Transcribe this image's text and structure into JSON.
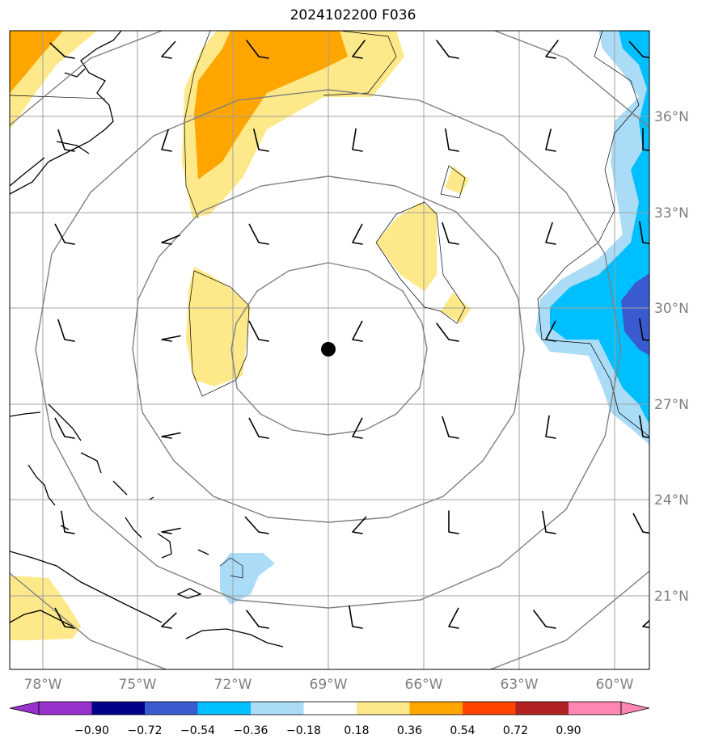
{
  "title": "2024102200 F036",
  "colors": {
    "neg_090": "#9932cc",
    "neg_072": "#00008b",
    "neg_054": "#3a5bcf",
    "neg_036": "#00bfff",
    "neg_018": "#aadcf8",
    "pos_018": "#fde98a",
    "pos_036": "#ffa500",
    "pos_054": "#ff4500",
    "pos_072": "#b22222",
    "pos_090": "#ff85b4",
    "grid": "#a0a0a0",
    "rings": "#808080",
    "center_marker": "#000000"
  },
  "lat_labels": [
    "36°N",
    "33°N",
    "30°N",
    "27°N",
    "24°N",
    "21°N"
  ],
  "lon_labels": [
    "78°W",
    "75°W",
    "72°W",
    "69°W",
    "66°W",
    "63°W",
    "60°W"
  ],
  "colorbar_labels": [
    "−0.90",
    "−0.72",
    "−0.54",
    "−0.36",
    "−0.18",
    "0.18",
    "0.36",
    "0.54",
    "0.72",
    "0.90"
  ]
}
